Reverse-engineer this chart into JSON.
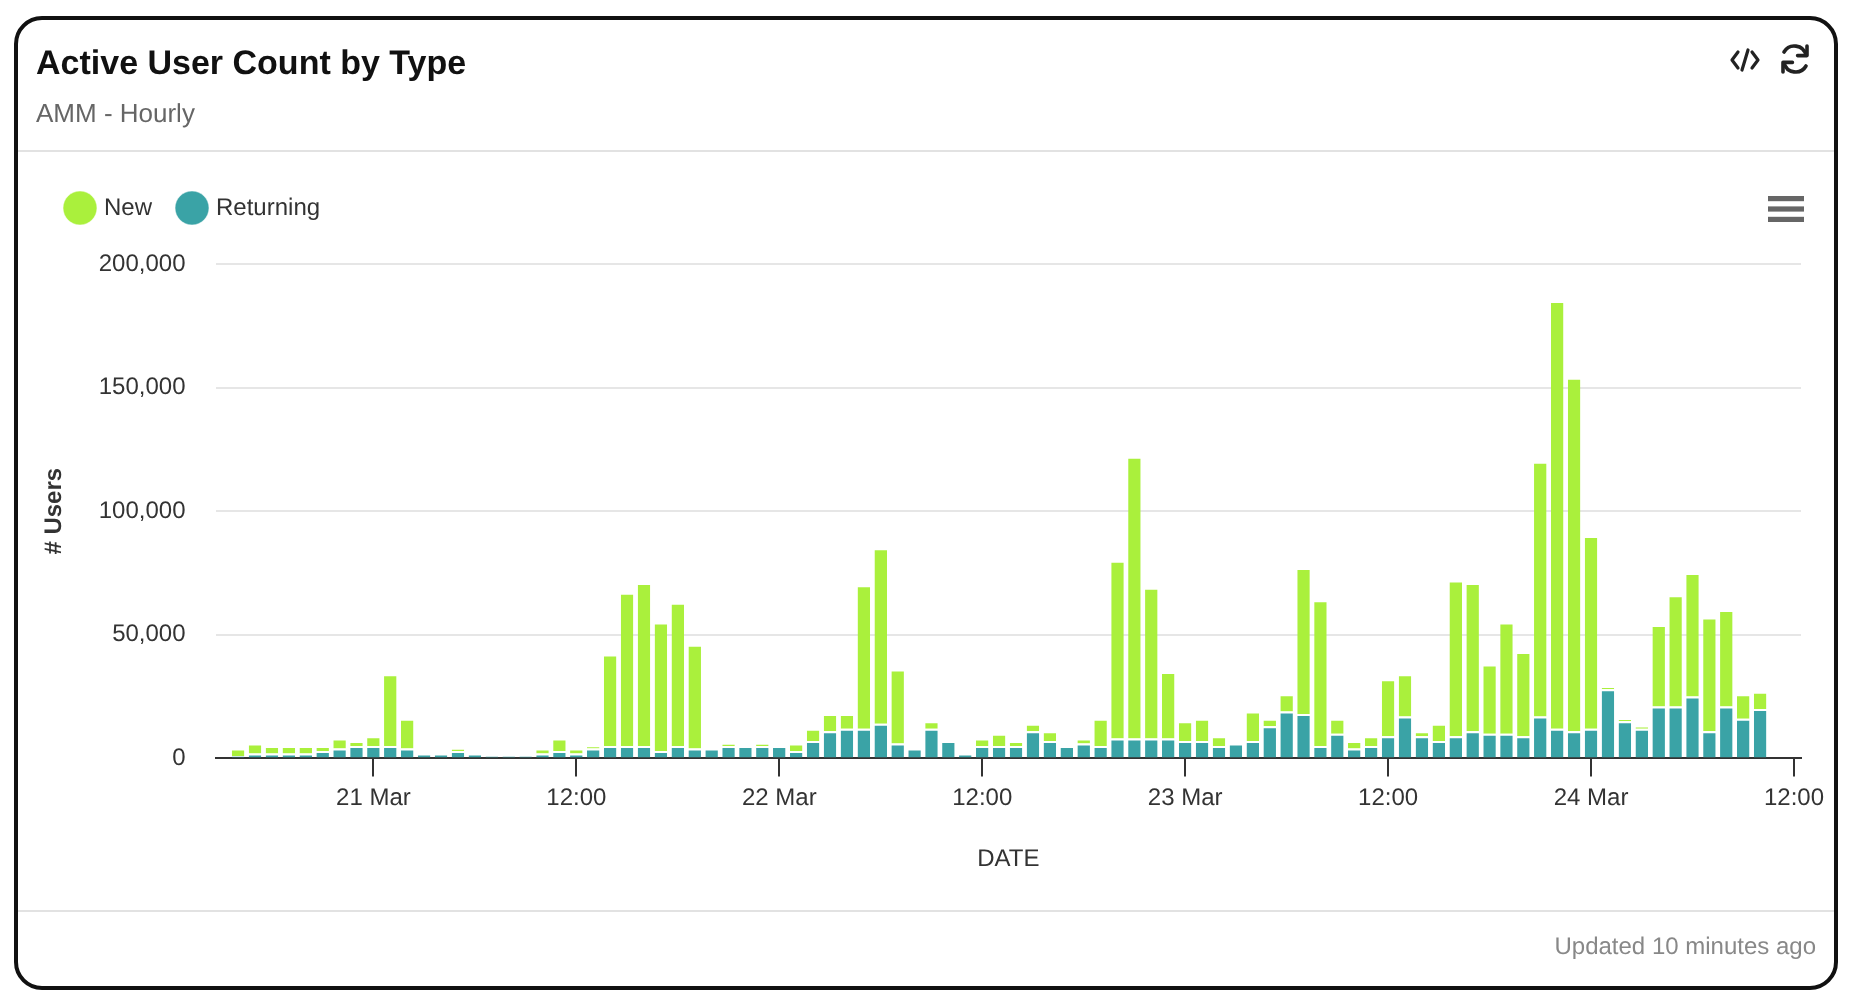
{
  "chart_data": {
    "type": "bar",
    "title": "Active User Count by Type",
    "subtitle": "AMM - Hourly",
    "xlabel": "DATE",
    "ylabel": "# Users",
    "annotations": [
      "Updated 10 minutes ago"
    ],
    "stacked": true,
    "grid": "y",
    "legend": "top left",
    "x": [
      "--03-20T16:00",
      "--03-20T17:00",
      "--03-20T18:00",
      "--03-20T19:00",
      "--03-20T20:00",
      "--03-20T21:00",
      "--03-20T22:00",
      "--03-20T23:00",
      "--03-21T00:00",
      "--03-21T01:00",
      "--03-21T02:00",
      "--03-21T03:00",
      "--03-21T04:00",
      "--03-21T05:00",
      "--03-21T06:00",
      "--03-21T07:00",
      "--03-21T08:00",
      "--03-21T09:00",
      "--03-21T10:00",
      "--03-21T11:00",
      "--03-21T12:00",
      "--03-21T13:00",
      "--03-21T14:00",
      "--03-21T15:00",
      "--03-21T16:00",
      "--03-21T17:00",
      "--03-21T18:00",
      "--03-21T19:00",
      "--03-21T20:00",
      "--03-21T21:00",
      "--03-21T22:00",
      "--03-21T23:00",
      "--03-22T00:00",
      "--03-22T01:00",
      "--03-22T02:00",
      "--03-22T03:00",
      "--03-22T04:00",
      "--03-22T05:00",
      "--03-22T06:00",
      "--03-22T07:00",
      "--03-22T08:00",
      "--03-22T09:00",
      "--03-22T10:00",
      "--03-22T11:00",
      "--03-22T12:00",
      "--03-22T13:00",
      "--03-22T14:00",
      "--03-22T15:00",
      "--03-22T16:00",
      "--03-22T17:00",
      "--03-22T18:00",
      "--03-22T19:00",
      "--03-22T20:00",
      "--03-22T21:00",
      "--03-22T22:00",
      "--03-22T23:00",
      "--03-23T00:00",
      "--03-23T01:00",
      "--03-23T02:00",
      "--03-23T03:00",
      "--03-23T04:00",
      "--03-23T05:00",
      "--03-23T06:00",
      "--03-23T07:00",
      "--03-23T08:00",
      "--03-23T09:00",
      "--03-23T10:00",
      "--03-23T11:00",
      "--03-23T12:00",
      "--03-23T13:00",
      "--03-23T14:00",
      "--03-23T15:00",
      "--03-23T16:00",
      "--03-23T17:00",
      "--03-23T18:00",
      "--03-23T19:00",
      "--03-23T20:00",
      "--03-23T21:00",
      "--03-23T22:00",
      "--03-23T23:00",
      "--03-24T00:00",
      "--03-24T01:00",
      "--03-24T02:00",
      "--03-24T03:00",
      "--03-24T04:00",
      "--03-24T05:00",
      "--03-24T06:00",
      "--03-24T07:00",
      "--03-24T08:00",
      "--03-24T09:00",
      "--03-24T10:00"
    ],
    "series": [
      {
        "name": "Returning",
        "color": "#3aa3a6",
        "values": [
          1000,
          2000,
          2000,
          2000,
          2000,
          3000,
          4000,
          5000,
          5000,
          5000,
          4000,
          2000,
          2000,
          3000,
          2000,
          1000,
          1000,
          1000,
          2000,
          3000,
          2000,
          4000,
          5000,
          5000,
          5000,
          3000,
          5000,
          4000,
          4000,
          5000,
          5000,
          5000,
          5000,
          3000,
          7000,
          11000,
          12000,
          12000,
          14000,
          6000,
          4000,
          12000,
          7000,
          2000,
          5000,
          5000,
          5000,
          11000,
          7000,
          5000,
          6000,
          5000,
          8000,
          8000,
          8000,
          8000,
          7000,
          7000,
          5000,
          6000,
          7000,
          13000,
          19000,
          18000,
          5000,
          10000,
          4000,
          5000,
          9000,
          17000,
          9000,
          7000,
          9000,
          11000,
          10000,
          10000,
          9000,
          17000,
          12000,
          11000,
          12000,
          28000,
          15000,
          12000,
          21000,
          21000,
          25000,
          11000,
          21000,
          16000,
          20000
        ]
      },
      {
        "name": "New",
        "color": "#aaf03c",
        "values": [
          3000,
          4000,
          3000,
          3000,
          3000,
          2000,
          4000,
          2000,
          4000,
          29000,
          12000,
          0,
          0,
          1000,
          0,
          0,
          0,
          0,
          2000,
          5000,
          2000,
          1000,
          37000,
          62000,
          66000,
          52000,
          58000,
          42000,
          0,
          1000,
          0,
          1000,
          0,
          3000,
          5000,
          7000,
          6000,
          58000,
          71000,
          30000,
          0,
          3000,
          0,
          0,
          3000,
          5000,
          2000,
          3000,
          4000,
          0,
          2000,
          11000,
          72000,
          114000,
          61000,
          27000,
          8000,
          9000,
          4000,
          0,
          12000,
          3000,
          7000,
          59000,
          59000,
          6000,
          3000,
          4000,
          23000,
          17000,
          2000,
          7000,
          63000,
          60000,
          28000,
          45000,
          34000,
          103000,
          173000,
          143000,
          78000,
          1000,
          1000,
          1000,
          33000,
          45000,
          50000,
          46000,
          39000,
          10000,
          7000
        ]
      }
    ],
    "xlim": [
      "--03-20T14:40",
      "--03-24T12:25"
    ],
    "xticks": [
      {
        "value": "--03-21T00:00",
        "label": "21 Mar"
      },
      {
        "value": "--03-21T12:00",
        "label": "12:00"
      },
      {
        "value": "--03-22T00:00",
        "label": "22 Mar"
      },
      {
        "value": "--03-22T12:00",
        "label": "12:00"
      },
      {
        "value": "--03-23T00:00",
        "label": "23 Mar"
      },
      {
        "value": "--03-23T12:00",
        "label": "12:00"
      },
      {
        "value": "--03-24T00:00",
        "label": "24 Mar"
      },
      {
        "value": "--03-24T12:00",
        "label": "12:00"
      }
    ],
    "ylim": [
      0,
      200000
    ],
    "yticks": [
      0,
      {
        "value": 50000,
        "label": "50,000"
      },
      {
        "value": 100000,
        "label": "100,000"
      },
      {
        "value": 150000,
        "label": "150,000"
      },
      {
        "value": 200000,
        "label": "200,000"
      }
    ]
  }
}
